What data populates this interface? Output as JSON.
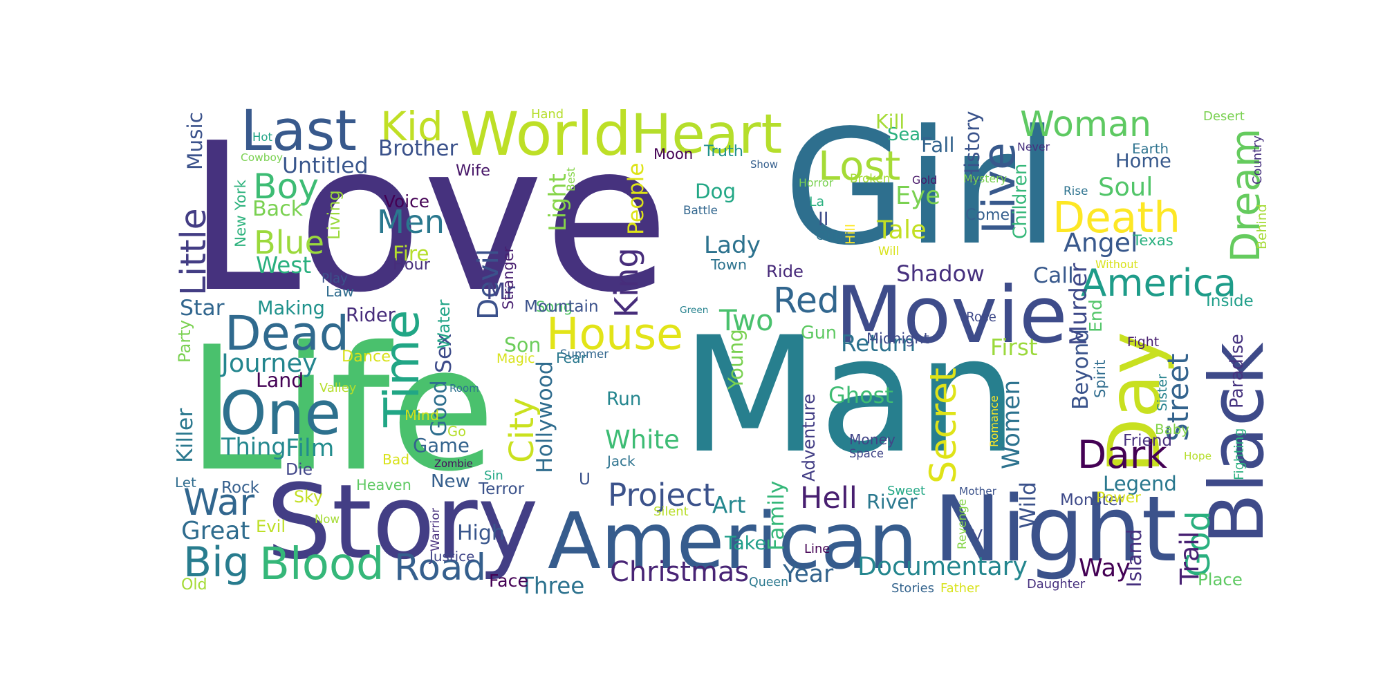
{
  "words": [
    {
      "text": "Love",
      "color": "#46327e"
    },
    {
      "text": "Life",
      "color": "#4ac16d"
    },
    {
      "text": "Man",
      "color": "#277f8e"
    },
    {
      "text": "Girl",
      "color": "#2e6f8e"
    },
    {
      "text": "Story",
      "color": "#433e85"
    },
    {
      "text": "American",
      "color": "#365c8d"
    },
    {
      "text": "Night",
      "color": "#3b528b"
    },
    {
      "text": "Black",
      "color": "#3e4a89"
    },
    {
      "text": "Movie",
      "color": "#3e4c8a"
    },
    {
      "text": "Day",
      "color": "#c8e020"
    },
    {
      "text": "World",
      "color": "#bddf26"
    },
    {
      "text": "Heart",
      "color": "#b5de2b"
    },
    {
      "text": "Last",
      "color": "#38598c"
    },
    {
      "text": "One",
      "color": "#2d718e"
    },
    {
      "text": "Dead",
      "color": "#306a8e"
    },
    {
      "text": "Time",
      "color": "#21a685"
    },
    {
      "text": "House",
      "color": "#e2e418"
    },
    {
      "text": "Woman",
      "color": "#5ec962"
    },
    {
      "text": "Live",
      "color": "#38598c"
    },
    {
      "text": "Death",
      "color": "#fde725"
    },
    {
      "text": "Dream",
      "color": "#65cb5e"
    },
    {
      "text": "Lost",
      "color": "#a5db36"
    },
    {
      "text": "Kid",
      "color": "#c0df25"
    },
    {
      "text": "Boy",
      "color": "#3dbc74"
    },
    {
      "text": "Blue",
      "color": "#9bd93c"
    },
    {
      "text": "Men",
      "color": "#2a788e"
    },
    {
      "text": "Devil",
      "color": "#3b518b"
    },
    {
      "text": "King",
      "color": "#472d7b"
    },
    {
      "text": "Red",
      "color": "#31668e"
    },
    {
      "text": "America",
      "color": "#1e9c89"
    },
    {
      "text": "Secret",
      "color": "#dfe318"
    },
    {
      "text": "Women",
      "color": "#2c728e"
    },
    {
      "text": "Dark",
      "color": "#440154"
    },
    {
      "text": "God",
      "color": "#2ab07f"
    },
    {
      "text": "City",
      "color": "#cae11f"
    },
    {
      "text": "Little",
      "color": "#433d84"
    },
    {
      "text": "War",
      "color": "#31668e"
    },
    {
      "text": "Big",
      "color": "#287c8e"
    },
    {
      "text": "Blood",
      "color": "#35b779"
    },
    {
      "text": "Road",
      "color": "#355f8d"
    },
    {
      "text": "Journey",
      "color": "#24868e"
    },
    {
      "text": "Project",
      "color": "#3b528b"
    },
    {
      "text": "Christmas",
      "color": "#482475"
    },
    {
      "text": "Documentary",
      "color": "#24868e"
    },
    {
      "text": "Hell",
      "color": "#481f70"
    },
    {
      "text": "Adventure",
      "color": "#433e85"
    },
    {
      "text": "Street",
      "color": "#33638d"
    },
    {
      "text": "Trail",
      "color": "#482173"
    },
    {
      "text": "Hollywood",
      "color": "#2f6c8e"
    },
    {
      "text": "Ghost",
      "color": "#3fbc73"
    },
    {
      "text": "Shadow",
      "color": "#46307e"
    },
    {
      "text": "Angel",
      "color": "#38588c"
    },
    {
      "text": "Tale",
      "color": "#c2df23"
    },
    {
      "text": "Eye",
      "color": "#7ad151"
    },
    {
      "text": "Soul",
      "color": "#52c569"
    },
    {
      "text": "Home",
      "color": "#38598c"
    },
    {
      "text": "Lady",
      "color": "#2c728e"
    },
    {
      "text": "Two",
      "color": "#4ac16d"
    },
    {
      "text": "White",
      "color": "#3dbc74"
    },
    {
      "text": "Game",
      "color": "#33638d"
    },
    {
      "text": "Good",
      "color": "#2e6f8e"
    },
    {
      "text": "Sex",
      "color": "#3e4c8a"
    },
    {
      "text": "Thing",
      "color": "#24878e"
    },
    {
      "text": "Film",
      "color": "#228c8d"
    },
    {
      "text": "Great",
      "color": "#2f6c8e"
    },
    {
      "text": "Killer",
      "color": "#2a788e"
    },
    {
      "text": "Beyond",
      "color": "#3a538b"
    },
    {
      "text": "Wild",
      "color": "#3b528b"
    },
    {
      "text": "Legend",
      "color": "#2a788e"
    },
    {
      "text": "Way",
      "color": "#440154"
    },
    {
      "text": "Murder",
      "color": "#3e4989"
    },
    {
      "text": "Return",
      "color": "#2c728e"
    },
    {
      "text": "First",
      "color": "#9bd93c"
    },
    {
      "text": "Mr",
      "color": "#414487"
    },
    {
      "text": "New",
      "color": "#355f8d"
    },
    {
      "text": "Year",
      "color": "#33638d"
    },
    {
      "text": "Money",
      "color": "#414487"
    },
    {
      "text": "Back",
      "color": "#7ad151"
    },
    {
      "text": "West",
      "color": "#2ab07f"
    },
    {
      "text": "Light",
      "color": "#86d549"
    },
    {
      "text": "People",
      "color": "#dde318"
    },
    {
      "text": "Brother",
      "color": "#3b528b"
    },
    {
      "text": "Untitled",
      "color": "#39568c"
    },
    {
      "text": "Music",
      "color": "#3b528b"
    },
    {
      "text": "Star",
      "color": "#31668e"
    },
    {
      "text": "Making",
      "color": "#20928c"
    },
    {
      "text": "Law",
      "color": "#2f6c8e"
    },
    {
      "text": "Land",
      "color": "#440154"
    },
    {
      "text": "Dog",
      "color": "#22a785"
    },
    {
      "text": "Town",
      "color": "#2c728e"
    },
    {
      "text": "Ride",
      "color": "#472a7a"
    },
    {
      "text": "Call",
      "color": "#38598c"
    },
    {
      "text": "Come",
      "color": "#355f8d"
    },
    {
      "text": "Sea",
      "color": "#2ab07f"
    },
    {
      "text": "Fall",
      "color": "#33638d"
    },
    {
      "text": "Kill",
      "color": "#a5db36"
    },
    {
      "text": "History",
      "color": "#3a538b"
    },
    {
      "text": "Children",
      "color": "#35b779"
    },
    {
      "text": "Truth",
      "color": "#21918c"
    },
    {
      "text": "Moon",
      "color": "#440154"
    },
    {
      "text": "Wife",
      "color": "#481769"
    },
    {
      "text": "Voice",
      "color": "#440154"
    },
    {
      "text": "Fire",
      "color": "#b5de2b"
    },
    {
      "text": "Hour",
      "color": "#472d7b"
    },
    {
      "text": "Song",
      "color": "#54c568"
    },
    {
      "text": "Mountain",
      "color": "#3b528b"
    },
    {
      "text": "Summer",
      "color": "#31668e"
    },
    {
      "text": "Fear",
      "color": "#2a788e"
    },
    {
      "text": "Son",
      "color": "#6ccd5a"
    },
    {
      "text": "Young",
      "color": "#7ad151"
    },
    {
      "text": "Run",
      "color": "#24868e"
    },
    {
      "text": "Gun",
      "color": "#5ec962"
    },
    {
      "text": "Midnight",
      "color": "#3e4a89"
    },
    {
      "text": "Dance",
      "color": "#d8e219"
    },
    {
      "text": "Go",
      "color": "#b5de2b"
    },
    {
      "text": "Bad",
      "color": "#d8e219"
    },
    {
      "text": "Die",
      "color": "#404688"
    },
    {
      "text": "Heaven",
      "color": "#5ec962"
    },
    {
      "text": "Rock",
      "color": "#355f8d"
    },
    {
      "text": "Sky",
      "color": "#c2df23"
    },
    {
      "text": "Evil",
      "color": "#bddf26"
    },
    {
      "text": "High",
      "color": "#39568c"
    },
    {
      "text": "Terror",
      "color": "#3b528b"
    },
    {
      "text": "Art",
      "color": "#24878e"
    },
    {
      "text": "Take",
      "color": "#1f9e89"
    },
    {
      "text": "River",
      "color": "#2a788e"
    },
    {
      "text": "Family",
      "color": "#35b779"
    },
    {
      "text": "Monster",
      "color": "#3e4a89"
    },
    {
      "text": "Power",
      "color": "#d8e219"
    },
    {
      "text": "Three",
      "color": "#2c728e"
    },
    {
      "text": "Island",
      "color": "#46307e"
    },
    {
      "text": "Baby",
      "color": "#84d44b"
    },
    {
      "text": "Friend",
      "color": "#46307e"
    },
    {
      "text": "Place",
      "color": "#5ec962"
    },
    {
      "text": "Inside",
      "color": "#1f9e89"
    },
    {
      "text": "Paradise",
      "color": "#46337f"
    },
    {
      "text": "Texas",
      "color": "#2ab07f"
    },
    {
      "text": "End",
      "color": "#52c569"
    },
    {
      "text": "Rose",
      "color": "#3e4989"
    },
    {
      "text": "Mind",
      "color": "#d0e11c"
    },
    {
      "text": "Valley",
      "color": "#b5de2b"
    },
    {
      "text": "Water",
      "color": "#20a486"
    },
    {
      "text": "Stranger",
      "color": "#481f70"
    },
    {
      "text": "Hand",
      "color": "#b5de2b"
    },
    {
      "text": "Hot",
      "color": "#20a486"
    },
    {
      "text": "Cowboy",
      "color": "#7ad151"
    },
    {
      "text": "New York",
      "color": "#2db27d"
    },
    {
      "text": "Living",
      "color": "#9bd93c"
    },
    {
      "text": "Play",
      "color": "#3b528b"
    },
    {
      "text": "Party",
      "color": "#7ad151"
    },
    {
      "text": "Rider",
      "color": "#472d7b"
    },
    {
      "text": "Magic",
      "color": "#d8e219"
    },
    {
      "text": "Room",
      "color": "#2c728e"
    },
    {
      "text": "Zombie",
      "color": "#46085c"
    },
    {
      "text": "Let",
      "color": "#2f6c8e"
    },
    {
      "text": "Old",
      "color": "#a5db36"
    },
    {
      "text": "Now",
      "color": "#a5db36"
    },
    {
      "text": "Warrior",
      "color": "#472f7d"
    },
    {
      "text": "Justice",
      "color": "#404688"
    },
    {
      "text": "Face",
      "color": "#440154"
    },
    {
      "text": "Sin",
      "color": "#22a785"
    },
    {
      "text": "U",
      "color": "#3b528b"
    },
    {
      "text": "Jack",
      "color": "#2c728e"
    },
    {
      "text": "Silent",
      "color": "#b8de29"
    },
    {
      "text": "Queen",
      "color": "#2a788e"
    },
    {
      "text": "Line",
      "color": "#440154"
    },
    {
      "text": "Stories",
      "color": "#33638d"
    },
    {
      "text": "Father",
      "color": "#d8e219"
    },
    {
      "text": "Daughter",
      "color": "#46307e"
    },
    {
      "text": "Sweet",
      "color": "#22a785"
    },
    {
      "text": "Mother",
      "color": "#3b528b"
    },
    {
      "text": "Revenge",
      "color": "#86d549"
    },
    {
      "text": "Space",
      "color": "#404688"
    },
    {
      "text": "Romance",
      "color": "#fde725"
    },
    {
      "text": "V",
      "color": "#3e4c8a"
    },
    {
      "text": "Hope",
      "color": "#b5de2b"
    },
    {
      "text": "Spirit",
      "color": "#2f6c8e"
    },
    {
      "text": "Sister",
      "color": "#26828e"
    },
    {
      "text": "Fighting",
      "color": "#2ab07f"
    },
    {
      "text": "Fight",
      "color": "#481f70"
    },
    {
      "text": "Without",
      "color": "#d8e219"
    },
    {
      "text": "Behind",
      "color": "#a5db36"
    },
    {
      "text": "Country",
      "color": "#46307e"
    },
    {
      "text": "Desert",
      "color": "#7ad151"
    },
    {
      "text": "Earth",
      "color": "#2c728e"
    },
    {
      "text": "Never",
      "color": "#46307e"
    },
    {
      "text": "Rise",
      "color": "#2c728e"
    },
    {
      "text": "Mystery",
      "color": "#7ad151"
    },
    {
      "text": "Gold",
      "color": "#481769"
    },
    {
      "text": "Broken",
      "color": "#a5db36"
    },
    {
      "text": "Horror",
      "color": "#7ad151"
    },
    {
      "text": "Will",
      "color": "#d8e219"
    },
    {
      "text": "Hill",
      "color": "#fde725"
    },
    {
      "text": "Club",
      "color": "#2c728e"
    },
    {
      "text": "II",
      "color": "#3e4c8a"
    },
    {
      "text": "La",
      "color": "#2ab07f"
    },
    {
      "text": "Show",
      "color": "#355f8d"
    },
    {
      "text": "Best",
      "color": "#86d549"
    },
    {
      "text": "Battle",
      "color": "#31668e"
    },
    {
      "text": "Green",
      "color": "#26828e"
    }
  ]
}
